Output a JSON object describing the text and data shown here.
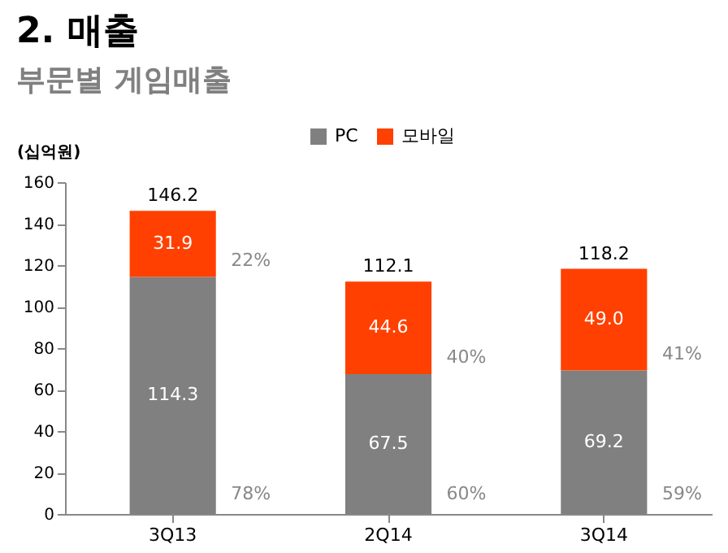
{
  "chart_data": {
    "type": "bar",
    "title": "2. 매출",
    "subtitle": "부문별 게임매출",
    "ylabel": "(십억원)",
    "categories": [
      "3Q13",
      "2Q14",
      "3Q14"
    ],
    "series": [
      {
        "name": "PC",
        "color": "#808080",
        "values": [
          114.3,
          67.5,
          69.2
        ],
        "value_labels": [
          "114.3",
          "67.5",
          "69.2"
        ]
      },
      {
        "name": "모바일",
        "color": "#ff4000",
        "values": [
          31.9,
          44.6,
          49.0
        ],
        "value_labels": [
          "31.9",
          "44.6",
          "49.0"
        ]
      }
    ],
    "stacked": true,
    "totals": [
      "146.2",
      "112.1",
      "118.2"
    ],
    "ylim": [
      0,
      160
    ],
    "yticks": [
      0,
      20,
      40,
      60,
      80,
      100,
      120,
      140,
      160
    ],
    "grid": false,
    "legend": "top",
    "annotations": [
      "22%",
      "78%",
      "40%",
      "60%",
      "41%",
      "59%"
    ]
  }
}
